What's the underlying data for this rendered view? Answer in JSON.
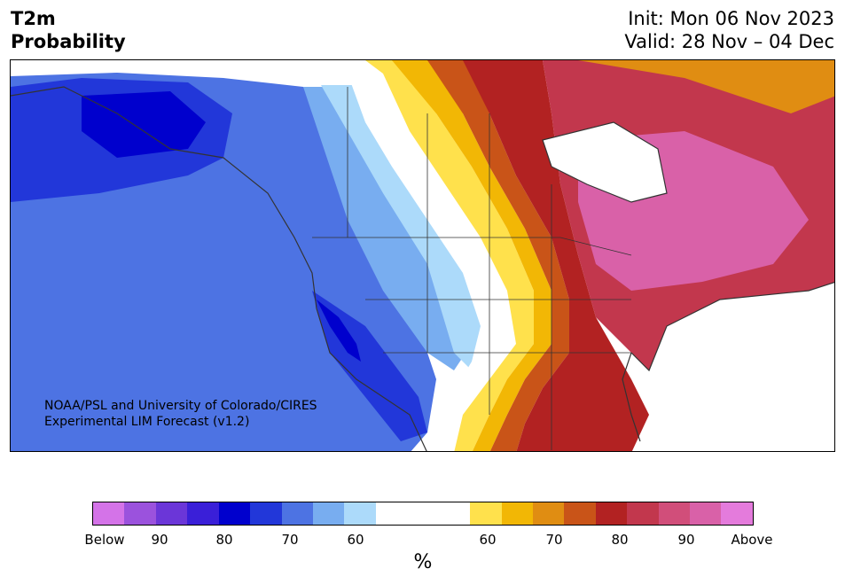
{
  "header": {
    "title_line1": "T2m",
    "title_line2": "Probability",
    "init": "Init: Mon 06 Nov 2023",
    "valid": "Valid: 28 Nov – 04 Dec"
  },
  "map": {
    "region": "North America",
    "credit_line1": "NOAA/PSL and University of Colorado/CIRES",
    "credit_line2": "Experimental LIM Forecast (v1.2)"
  },
  "colorbar": {
    "unit": "%",
    "tick_labels": [
      "Below",
      "90",
      "80",
      "70",
      "60",
      "60",
      "70",
      "80",
      "90",
      "Above"
    ],
    "colors": [
      "#d473e8",
      "#9b52dd",
      "#6b36d8",
      "#3a1fd8",
      "#0000cd",
      "#2237d9",
      "#4d73e3",
      "#78adf0",
      "#acdafa",
      "#ffffff",
      "#ffe14c",
      "#f2b705",
      "#e08d12",
      "#c95418",
      "#b22222",
      "#c2374d",
      "#d14e7a",
      "#d961a8",
      "#e47bdc"
    ]
  }
}
